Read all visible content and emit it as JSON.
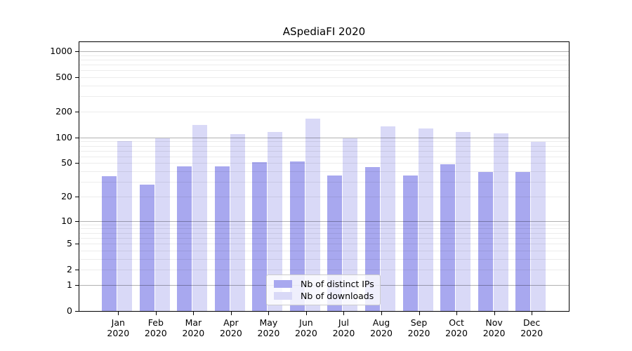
{
  "chart_data": {
    "type": "bar",
    "title": "ASpediaFI 2020",
    "categories": [
      "Jan 2020",
      "Feb 2020",
      "Mar 2020",
      "Apr 2020",
      "May 2020",
      "Jun 2020",
      "Jul 2020",
      "Aug 2020",
      "Sep 2020",
      "Oct 2020",
      "Nov 2020",
      "Dec 2020"
    ],
    "series": [
      {
        "name": "Nb of distinct IPs",
        "color": "#a8a8ef",
        "values": [
          35,
          28,
          46,
          46,
          51,
          52,
          36,
          45,
          36,
          49,
          39,
          39
        ]
      },
      {
        "name": "Nb of downloads",
        "color": "#d9d9f7",
        "values": [
          90,
          97,
          141,
          109,
          115,
          167,
          97,
          134,
          128,
          116,
          112,
          89
        ]
      }
    ],
    "xlabel": "",
    "ylabel": "",
    "y_scale": "log10(1+value)",
    "ylim": [
      0,
      1300
    ],
    "y_tick_values": [
      0,
      1,
      2,
      5,
      10,
      20,
      50,
      100,
      200,
      500,
      1000
    ],
    "major_grid_values": [
      1,
      10,
      100,
      1000
    ],
    "minor_grid_values": [
      2,
      3,
      4,
      5,
      6,
      7,
      8,
      9,
      20,
      30,
      40,
      50,
      60,
      70,
      80,
      90,
      200,
      300,
      400,
      500,
      600,
      700,
      800,
      900
    ],
    "grid": true,
    "legend_position": "lower center",
    "legend_entries": [
      "Nb of distinct IPs",
      "Nb of downloads"
    ]
  },
  "colors": {
    "background": "#ffffff",
    "spine": "#000000",
    "major_grid": "rgba(0,0,0,0.30)",
    "minor_grid": "rgba(0,0,0,0.075)",
    "bar_dark": "#a8a8ef",
    "bar_light": "#d9d9f7",
    "legend_border": "#cccccc"
  }
}
